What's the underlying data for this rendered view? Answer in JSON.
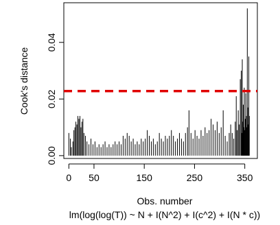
{
  "chart_data": {
    "type": "bar",
    "xlabel": "Obs. number",
    "ylabel": "Cook's distance",
    "subtitle": "lm(log(log(T)) ~ N + I(N^2) + I(c^2) + I(N * c))",
    "xlim": [
      -10,
      375
    ],
    "ylim": [
      -0.001,
      0.054
    ],
    "x_ticks": [
      0,
      50,
      150,
      250,
      350
    ],
    "x_tick_labels": [
      "0",
      "50",
      "150",
      "250",
      "350"
    ],
    "y_ticks": [
      0.0,
      0.02,
      0.04
    ],
    "y_tick_labels": [
      "0.00",
      "0.02",
      "0.04"
    ],
    "reference_line": {
      "value": 0.0228,
      "color": "#e00000",
      "style": "dashed"
    },
    "n": 360,
    "spikes": [
      {
        "x": 0,
        "y": 0.008
      },
      {
        "x": 3,
        "y": 0.006
      },
      {
        "x": 5,
        "y": 0.003
      },
      {
        "x": 8,
        "y": 0.005
      },
      {
        "x": 10,
        "y": 0.009
      },
      {
        "x": 12,
        "y": 0.01
      },
      {
        "x": 14,
        "y": 0.012
      },
      {
        "x": 16,
        "y": 0.011
      },
      {
        "x": 18,
        "y": 0.014
      },
      {
        "x": 20,
        "y": 0.013
      },
      {
        "x": 22,
        "y": 0.014
      },
      {
        "x": 24,
        "y": 0.01
      },
      {
        "x": 26,
        "y": 0.012
      },
      {
        "x": 28,
        "y": 0.013
      },
      {
        "x": 30,
        "y": 0.008
      },
      {
        "x": 33,
        "y": 0.007
      },
      {
        "x": 36,
        "y": 0.005
      },
      {
        "x": 40,
        "y": 0.004
      },
      {
        "x": 44,
        "y": 0.006
      },
      {
        "x": 48,
        "y": 0.004
      },
      {
        "x": 52,
        "y": 0.005
      },
      {
        "x": 56,
        "y": 0.003
      },
      {
        "x": 60,
        "y": 0.004
      },
      {
        "x": 64,
        "y": 0.003
      },
      {
        "x": 68,
        "y": 0.004
      },
      {
        "x": 72,
        "y": 0.005
      },
      {
        "x": 76,
        "y": 0.003
      },
      {
        "x": 80,
        "y": 0.004
      },
      {
        "x": 84,
        "y": 0.003
      },
      {
        "x": 88,
        "y": 0.004
      },
      {
        "x": 92,
        "y": 0.005
      },
      {
        "x": 96,
        "y": 0.004
      },
      {
        "x": 100,
        "y": 0.005
      },
      {
        "x": 104,
        "y": 0.004
      },
      {
        "x": 108,
        "y": 0.007
      },
      {
        "x": 112,
        "y": 0.006
      },
      {
        "x": 116,
        "y": 0.008
      },
      {
        "x": 120,
        "y": 0.007
      },
      {
        "x": 124,
        "y": 0.005
      },
      {
        "x": 128,
        "y": 0.006
      },
      {
        "x": 132,
        "y": 0.004
      },
      {
        "x": 136,
        "y": 0.005
      },
      {
        "x": 140,
        "y": 0.004
      },
      {
        "x": 144,
        "y": 0.006
      },
      {
        "x": 148,
        "y": 0.005
      },
      {
        "x": 152,
        "y": 0.006
      },
      {
        "x": 156,
        "y": 0.009
      },
      {
        "x": 160,
        "y": 0.007
      },
      {
        "x": 164,
        "y": 0.005
      },
      {
        "x": 168,
        "y": 0.006
      },
      {
        "x": 172,
        "y": 0.004
      },
      {
        "x": 176,
        "y": 0.005
      },
      {
        "x": 180,
        "y": 0.008
      },
      {
        "x": 184,
        "y": 0.006
      },
      {
        "x": 188,
        "y": 0.005
      },
      {
        "x": 192,
        "y": 0.007
      },
      {
        "x": 196,
        "y": 0.006
      },
      {
        "x": 200,
        "y": 0.007
      },
      {
        "x": 204,
        "y": 0.009
      },
      {
        "x": 208,
        "y": 0.007
      },
      {
        "x": 212,
        "y": 0.005
      },
      {
        "x": 216,
        "y": 0.006
      },
      {
        "x": 220,
        "y": 0.008
      },
      {
        "x": 224,
        "y": 0.006
      },
      {
        "x": 228,
        "y": 0.005
      },
      {
        "x": 232,
        "y": 0.008
      },
      {
        "x": 236,
        "y": 0.01
      },
      {
        "x": 239,
        "y": 0.016
      },
      {
        "x": 243,
        "y": 0.008
      },
      {
        "x": 247,
        "y": 0.006
      },
      {
        "x": 251,
        "y": 0.009
      },
      {
        "x": 255,
        "y": 0.007
      },
      {
        "x": 259,
        "y": 0.006
      },
      {
        "x": 263,
        "y": 0.009
      },
      {
        "x": 267,
        "y": 0.007
      },
      {
        "x": 271,
        "y": 0.01
      },
      {
        "x": 275,
        "y": 0.008
      },
      {
        "x": 279,
        "y": 0.009
      },
      {
        "x": 283,
        "y": 0.013
      },
      {
        "x": 287,
        "y": 0.011
      },
      {
        "x": 291,
        "y": 0.009
      },
      {
        "x": 295,
        "y": 0.012
      },
      {
        "x": 299,
        "y": 0.008
      },
      {
        "x": 303,
        "y": 0.01
      },
      {
        "x": 307,
        "y": 0.016
      },
      {
        "x": 311,
        "y": 0.007
      },
      {
        "x": 315,
        "y": 0.005
      },
      {
        "x": 319,
        "y": 0.008
      },
      {
        "x": 322,
        "y": 0.011
      },
      {
        "x": 325,
        "y": 0.008
      },
      {
        "x": 328,
        "y": 0.006
      },
      {
        "x": 331,
        "y": 0.012
      },
      {
        "x": 333,
        "y": 0.021
      },
      {
        "x": 335,
        "y": 0.009
      },
      {
        "x": 337,
        "y": 0.016
      },
      {
        "x": 339,
        "y": 0.011
      },
      {
        "x": 341,
        "y": 0.027
      },
      {
        "x": 343,
        "y": 0.03
      },
      {
        "x": 344,
        "y": 0.008
      },
      {
        "x": 345,
        "y": 0.034
      },
      {
        "x": 346,
        "y": 0.012
      },
      {
        "x": 347,
        "y": 0.018
      },
      {
        "x": 348,
        "y": 0.01
      },
      {
        "x": 349,
        "y": 0.024
      },
      {
        "x": 350,
        "y": 0.009
      },
      {
        "x": 351,
        "y": 0.013
      },
      {
        "x": 352,
        "y": 0.022
      },
      {
        "x": 353,
        "y": 0.014
      },
      {
        "x": 354,
        "y": 0.01
      },
      {
        "x": 355,
        "y": 0.052
      },
      {
        "x": 356,
        "y": 0.017
      },
      {
        "x": 357,
        "y": 0.011
      },
      {
        "x": 358,
        "y": 0.035
      },
      {
        "x": 359,
        "y": 0.014
      }
    ]
  }
}
